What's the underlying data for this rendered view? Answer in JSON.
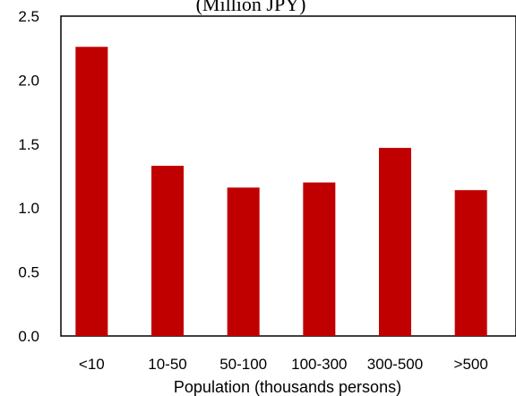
{
  "chart_data": {
    "type": "bar",
    "title": "(Million JPY)",
    "xlabel": "Population (thousands persons)",
    "ylabel": "",
    "categories": [
      "<10",
      "10-50",
      "50-100",
      "100-300",
      "300-500",
      ">500"
    ],
    "values": [
      2.26,
      1.33,
      1.16,
      1.2,
      1.47,
      1.14
    ],
    "ylim": [
      0,
      2.5
    ],
    "yticks": [
      "0.0",
      "0.5",
      "1.0",
      "1.5",
      "2.0",
      "2.5"
    ],
    "grid": false,
    "legend": "none",
    "bar_color": "#c00000"
  }
}
